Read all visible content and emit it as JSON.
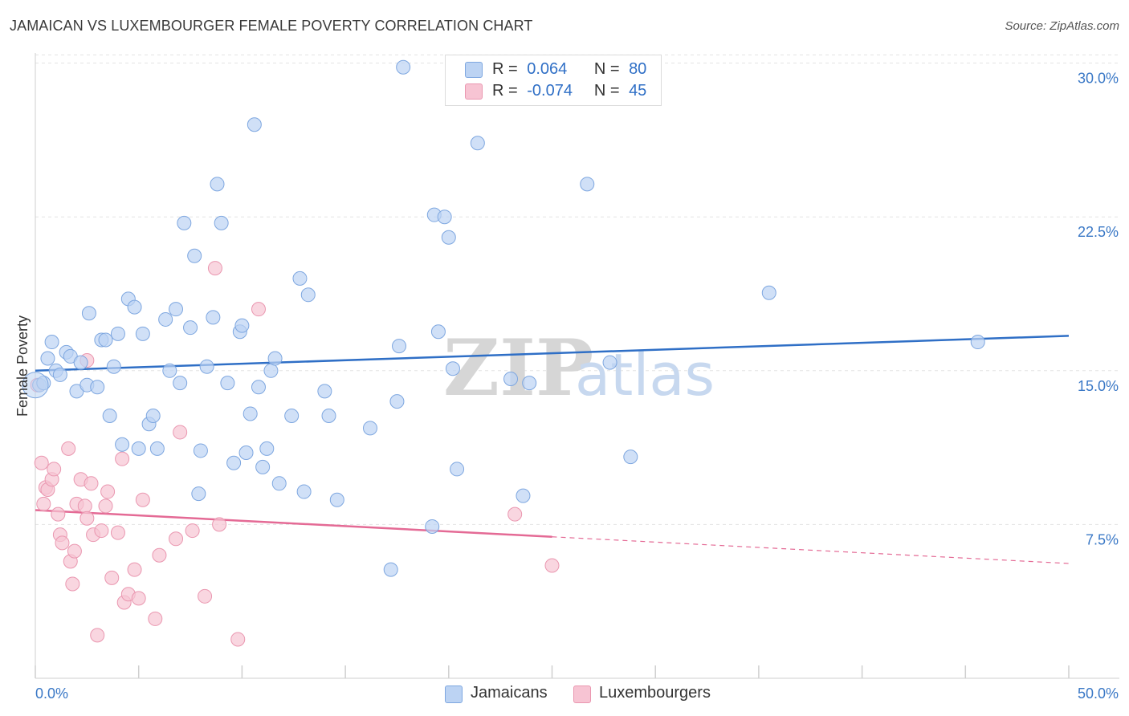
{
  "title": "JAMAICAN VS LUXEMBOURGER FEMALE POVERTY CORRELATION CHART",
  "source": "Source: ZipAtlas.com",
  "watermark": {
    "zip": "ZIP",
    "atlas": "atlas"
  },
  "legend": {
    "rows": [
      {
        "r_label": "R =",
        "r_value": "0.064",
        "n_label": "N =",
        "n_value": "80"
      },
      {
        "r_label": "R =",
        "r_value": "-0.074",
        "n_label": "N =",
        "n_value": "45"
      }
    ]
  },
  "bottom_legend": [
    "Jamaicans",
    "Luxembourgers"
  ],
  "colors": {
    "jamaican_fill": "#bcd3f3",
    "jamaican_stroke": "#7ea7e0",
    "jamaican_line": "#2f6fc6",
    "lux_fill": "#f7c4d3",
    "lux_stroke": "#ea97b0",
    "lux_line": "#e46a95",
    "tick_label": "#3a78c6",
    "grid": "#e3e3e3"
  },
  "chart_data": {
    "type": "scatter",
    "title": "JAMAICAN VS LUXEMBOURGER FEMALE POVERTY CORRELATION CHART",
    "xlabel": "",
    "ylabel": "Female Poverty",
    "xlim": [
      0,
      50
    ],
    "ylim": [
      0,
      31
    ],
    "x_tick_labels": [
      "0.0%",
      "50.0%"
    ],
    "y_ticks": [
      7.5,
      15.0,
      22.5,
      30.0
    ],
    "y_tick_labels": [
      "7.5%",
      "15.0%",
      "22.5%",
      "30.0%"
    ],
    "grid": true,
    "legend_position": "top-center",
    "series": [
      {
        "name": "Jamaicans",
        "r": 0.064,
        "n": 80,
        "trend": {
          "x": [
            0,
            50
          ],
          "y": [
            15.0,
            16.7
          ]
        },
        "points": [
          [
            0.2,
            14.3
          ],
          [
            0.4,
            14.4
          ],
          [
            0.6,
            15.6
          ],
          [
            0.8,
            16.4
          ],
          [
            1.0,
            15.0
          ],
          [
            1.2,
            14.8
          ],
          [
            1.5,
            15.9
          ],
          [
            1.7,
            15.7
          ],
          [
            2.0,
            14.0
          ],
          [
            2.2,
            15.4
          ],
          [
            2.5,
            14.3
          ],
          [
            2.6,
            17.8
          ],
          [
            3.0,
            14.2
          ],
          [
            3.2,
            16.5
          ],
          [
            3.4,
            16.5
          ],
          [
            3.6,
            12.8
          ],
          [
            3.8,
            15.2
          ],
          [
            4.0,
            16.8
          ],
          [
            4.2,
            11.4
          ],
          [
            4.5,
            18.5
          ],
          [
            4.8,
            18.1
          ],
          [
            5.0,
            11.2
          ],
          [
            5.2,
            16.8
          ],
          [
            5.5,
            12.4
          ],
          [
            5.7,
            12.8
          ],
          [
            5.9,
            11.2
          ],
          [
            6.3,
            17.5
          ],
          [
            6.5,
            15.0
          ],
          [
            6.8,
            18.0
          ],
          [
            7.0,
            14.4
          ],
          [
            7.2,
            22.2
          ],
          [
            7.5,
            17.1
          ],
          [
            7.7,
            20.6
          ],
          [
            7.9,
            9.0
          ],
          [
            8.0,
            11.1
          ],
          [
            8.3,
            15.2
          ],
          [
            8.6,
            17.6
          ],
          [
            8.8,
            24.1
          ],
          [
            9.0,
            22.2
          ],
          [
            9.3,
            14.4
          ],
          [
            9.6,
            10.5
          ],
          [
            9.9,
            16.9
          ],
          [
            10.0,
            17.2
          ],
          [
            10.2,
            11.0
          ],
          [
            10.4,
            12.9
          ],
          [
            10.6,
            27.0
          ],
          [
            10.8,
            14.2
          ],
          [
            11.0,
            10.3
          ],
          [
            11.2,
            11.2
          ],
          [
            11.4,
            15.0
          ],
          [
            11.6,
            15.6
          ],
          [
            11.8,
            9.5
          ],
          [
            12.4,
            12.8
          ],
          [
            12.8,
            19.5
          ],
          [
            13.0,
            9.1
          ],
          [
            13.2,
            18.7
          ],
          [
            14.0,
            14.0
          ],
          [
            14.2,
            12.8
          ],
          [
            14.6,
            8.7
          ],
          [
            16.2,
            12.2
          ],
          [
            17.2,
            5.3
          ],
          [
            17.5,
            13.5
          ],
          [
            17.6,
            16.2
          ],
          [
            17.8,
            29.8
          ],
          [
            19.2,
            7.4
          ],
          [
            19.3,
            22.6
          ],
          [
            19.5,
            16.9
          ],
          [
            19.8,
            22.5
          ],
          [
            20.0,
            21.5
          ],
          [
            20.2,
            15.1
          ],
          [
            20.4,
            10.2
          ],
          [
            21.4,
            26.1
          ],
          [
            23.0,
            14.6
          ],
          [
            23.6,
            8.9
          ],
          [
            23.9,
            14.4
          ],
          [
            26.7,
            24.1
          ],
          [
            27.8,
            15.4
          ],
          [
            28.8,
            10.8
          ],
          [
            35.5,
            18.8
          ],
          [
            45.6,
            16.4
          ]
        ]
      },
      {
        "name": "Luxembourgers",
        "r": -0.074,
        "n": 45,
        "trend": {
          "x": [
            0,
            25
          ],
          "y": [
            8.2,
            6.9
          ]
        },
        "trend_dashed": {
          "x": [
            25,
            50
          ],
          "y": [
            6.9,
            5.6
          ]
        },
        "points": [
          [
            0.1,
            14.3
          ],
          [
            0.3,
            10.5
          ],
          [
            0.4,
            8.5
          ],
          [
            0.5,
            9.3
          ],
          [
            0.6,
            9.2
          ],
          [
            0.8,
            9.7
          ],
          [
            0.9,
            10.2
          ],
          [
            1.1,
            8.0
          ],
          [
            1.2,
            7.0
          ],
          [
            1.3,
            6.6
          ],
          [
            1.6,
            11.2
          ],
          [
            1.7,
            5.7
          ],
          [
            1.8,
            4.6
          ],
          [
            1.9,
            6.2
          ],
          [
            2.0,
            8.5
          ],
          [
            2.2,
            9.7
          ],
          [
            2.4,
            8.4
          ],
          [
            2.5,
            7.8
          ],
          [
            2.7,
            9.5
          ],
          [
            2.8,
            7.0
          ],
          [
            3.0,
            2.1
          ],
          [
            3.2,
            7.2
          ],
          [
            3.4,
            8.4
          ],
          [
            3.5,
            9.1
          ],
          [
            3.7,
            4.9
          ],
          [
            4.0,
            7.1
          ],
          [
            4.2,
            10.7
          ],
          [
            4.3,
            3.7
          ],
          [
            4.5,
            4.1
          ],
          [
            4.8,
            5.3
          ],
          [
            5.0,
            3.9
          ],
          [
            5.2,
            8.7
          ],
          [
            5.8,
            2.9
          ],
          [
            6.0,
            6.0
          ],
          [
            6.8,
            6.8
          ],
          [
            7.0,
            12.0
          ],
          [
            7.6,
            7.2
          ],
          [
            8.2,
            4.0
          ],
          [
            8.7,
            20.0
          ],
          [
            8.9,
            7.5
          ],
          [
            9.8,
            1.9
          ],
          [
            10.8,
            18.0
          ],
          [
            23.2,
            8.0
          ],
          [
            25.0,
            5.5
          ],
          [
            2.5,
            15.5
          ]
        ]
      }
    ]
  }
}
